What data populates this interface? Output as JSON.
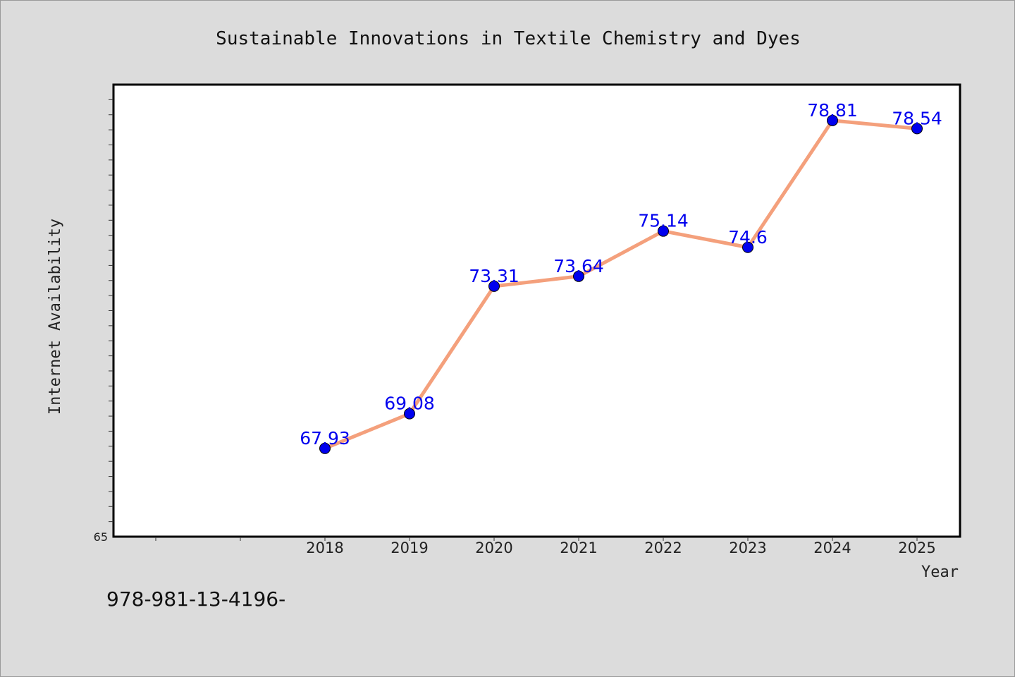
{
  "footnote": "978-981-13-4196-",
  "chart_data": {
    "type": "line",
    "title": "Sustainable Innovations in Textile Chemistry and Dyes",
    "xlabel": "Year",
    "ylabel": "Internet Availability",
    "x": [
      "2018",
      "2019",
      "2020",
      "2021",
      "2022",
      "2023",
      "2024",
      "2025"
    ],
    "series": [
      {
        "values": [
          67.93,
          69.08,
          73.31,
          73.64,
          75.14,
          74.6,
          78.81,
          78.54
        ],
        "labels": [
          "67.93",
          "69.08",
          "73.31",
          "73.64",
          "75.14",
          "74.6",
          "78.81",
          "78.54"
        ]
      }
    ],
    "ylim": [
      65,
      80
    ],
    "y_tick_labels": [
      {
        "value": 65,
        "label": "65"
      }
    ],
    "grid": false,
    "colors": {
      "line": "#f4a07c",
      "marker": "#0000ee",
      "label": "#0000ee",
      "plot_bg": "#ffffff",
      "page_bg": "#dcdcdc"
    }
  }
}
